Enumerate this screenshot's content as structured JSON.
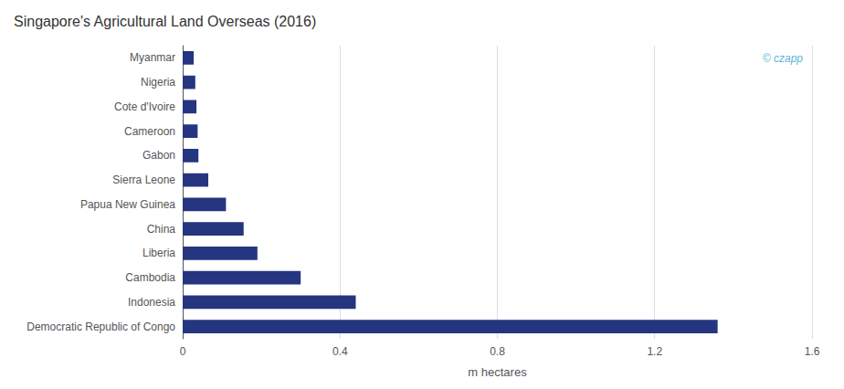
{
  "chart_data": {
    "type": "bar",
    "orientation": "horizontal",
    "title": "Singapore's Agricultural Land Overseas (2016)",
    "xlabel": "m hectares",
    "categories": [
      "Democratic Republic of Congo",
      "Indonesia",
      "Cambodia",
      "Liberia",
      "China",
      "Papua New Guinea",
      "Sierra Leone",
      "Gabon",
      "Cameroon",
      "Cote d'Ivoire",
      "Nigeria",
      "Myanmar"
    ],
    "values": [
      1.36,
      0.44,
      0.3,
      0.19,
      0.155,
      0.11,
      0.065,
      0.04,
      0.038,
      0.035,
      0.032,
      0.028
    ],
    "color": "#253580",
    "xlim": [
      0,
      1.6
    ],
    "xticks": [
      0,
      0.4,
      0.8,
      1.2,
      1.6
    ],
    "grid": true,
    "annotations": [
      {
        "text": "© czapp",
        "color": "#5bb8d4"
      }
    ]
  }
}
